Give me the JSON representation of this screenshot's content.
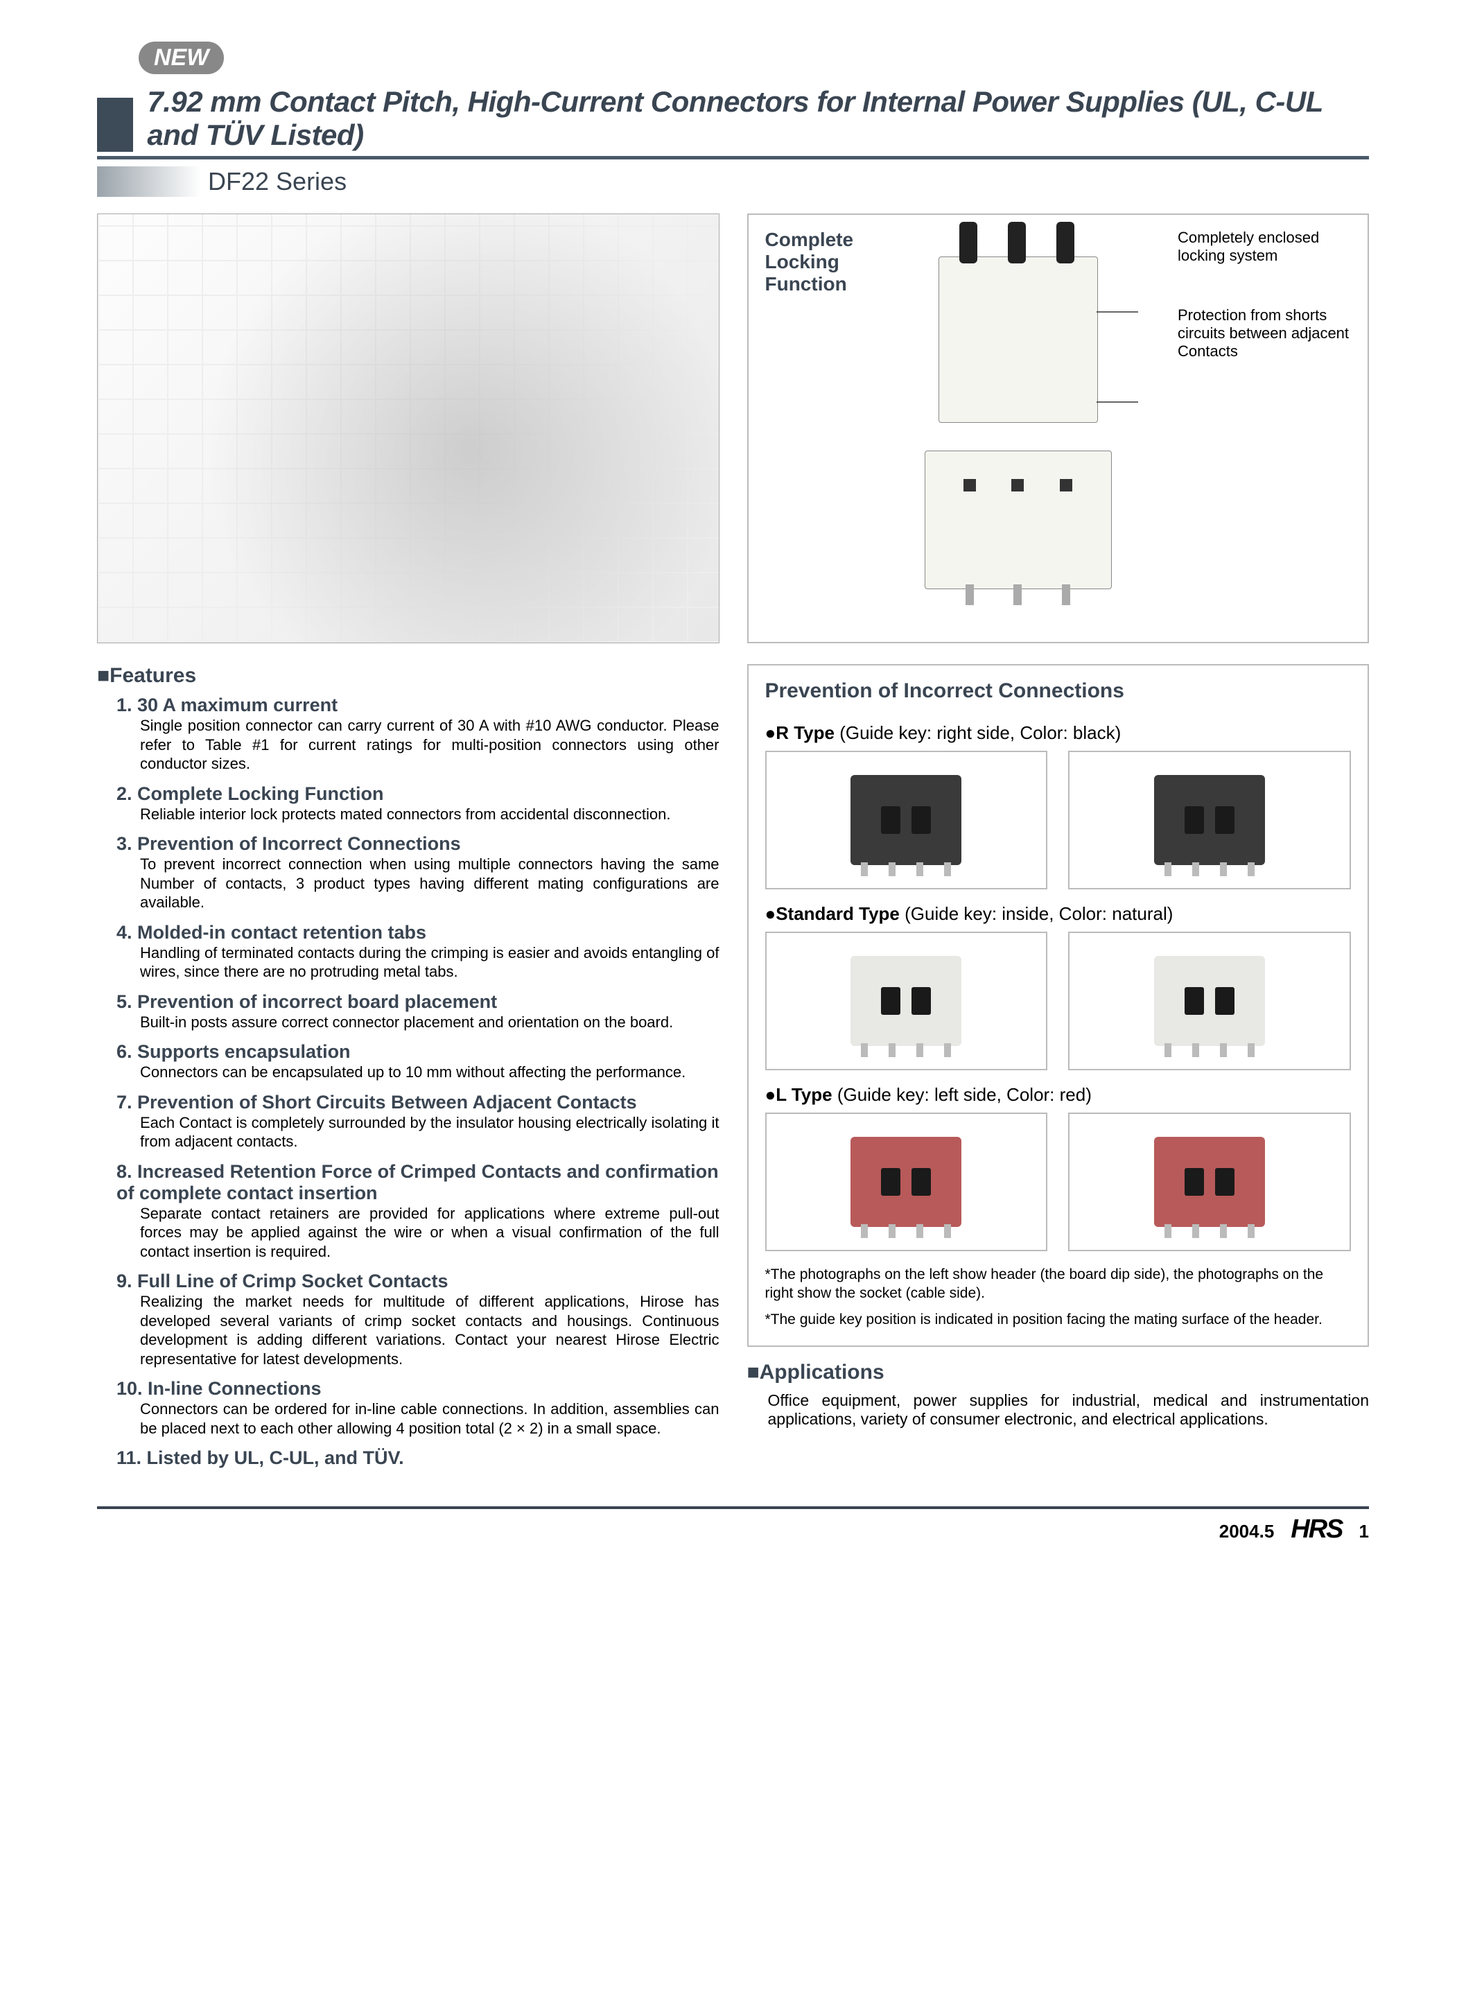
{
  "badge": "NEW",
  "title": "7.92 mm Contact Pitch, High-Current Connectors for Internal Power Supplies (UL, C-UL and TÜV Listed)",
  "subtitle": "DF22 Series",
  "features_heading": "Features",
  "features": [
    {
      "num": "1.",
      "title": "30 A maximum current",
      "body": "Single position connector can carry current of 30 A with #10 AWG conductor. Please refer to Table #1 for current ratings for multi-position connectors using other conductor sizes."
    },
    {
      "num": "2.",
      "title": "Complete Locking Function",
      "body": "Reliable interior lock protects mated connectors from accidental disconnection."
    },
    {
      "num": "3.",
      "title": "Prevention of Incorrect Connections",
      "body": "To prevent incorrect connection when using multiple connectors having the same Number of contacts, 3 product types having different mating configurations are available."
    },
    {
      "num": "4.",
      "title": "Molded-in contact retention tabs",
      "body": "Handling of terminated contacts during the crimping is easier and avoids entangling of wires, since there are no protruding metal tabs."
    },
    {
      "num": "5.",
      "title": "Prevention of incorrect board placement",
      "body": "Built-in posts assure correct connector placement and orientation on the board."
    },
    {
      "num": "6.",
      "title": "Supports encapsulation",
      "body": "Connectors can be encapsulated up to 10 mm without affecting the performance."
    },
    {
      "num": "7.",
      "title": "Prevention of Short Circuits Between Adjacent Contacts",
      "body": "Each Contact is completely surrounded by the insulator housing electrically isolating it from adjacent contacts."
    },
    {
      "num": "8.",
      "title": "Increased Retention Force of Crimped Contacts and confirmation of complete contact insertion",
      "body": "Separate contact retainers are provided for applications where extreme pull-out forces may be applied against the wire or when a visual confirmation of the full contact insertion is required."
    },
    {
      "num": "9.",
      "title": "Full Line of Crimp Socket Contacts",
      "body": "Realizing the market needs for multitude of different applications, Hirose has developed several variants of crimp socket contacts and housings. Continuous development is adding different variations. Contact your nearest Hirose Electric representative for latest developments."
    },
    {
      "num": "10.",
      "title": "In-line Connections",
      "body": "Connectors can be ordered for in-line cable connections. In addition, assemblies can be placed next to each other allowing 4 position total (2 × 2) in a small space."
    },
    {
      "num": "11.",
      "title": "Listed by UL, C-UL, and TÜV.",
      "body": ""
    }
  ],
  "locking": {
    "label": "Complete Locking Function",
    "callout1": "Completely enclosed locking system",
    "callout2": "Protection from shorts circuits between adjacent Contacts"
  },
  "prevention": {
    "title": "Prevention of Incorrect Connections",
    "types": [
      {
        "name": "R Type",
        "desc": "(Guide key: right side, Color: black)",
        "color": "#3a3a3a"
      },
      {
        "name": "Standard Type",
        "desc": "(Guide key: inside, Color: natural)",
        "color": "#e8e8e4"
      },
      {
        "name": "L Type",
        "desc": "(Guide key: left side, Color: red)",
        "color": "#b85a5a"
      }
    ],
    "note1": "*The photographs on the left show header (the board dip side), the photographs on the right show the socket (cable side).",
    "note2": "*The guide key position is indicated in position facing the mating surface of the header."
  },
  "applications": {
    "heading": "Applications",
    "body": "Office equipment, power supplies for industrial, medical and instrumentation applications, variety of consumer electronic, and electrical applications."
  },
  "footer": {
    "date": "2004.5",
    "logo": "HRS",
    "page": "1"
  },
  "colors": {
    "heading": "#3a4552",
    "border": "#bbbbbb",
    "rule": "#4a5a6a"
  }
}
